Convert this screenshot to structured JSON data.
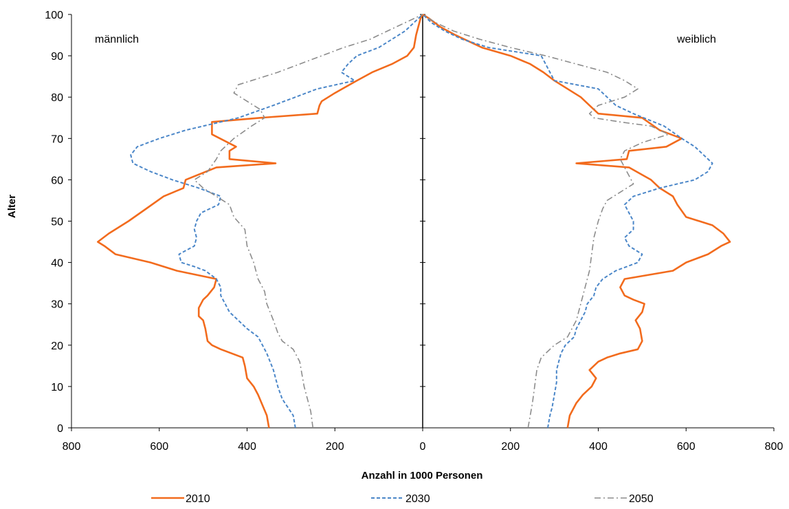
{
  "chart_data": {
    "type": "line",
    "title": "",
    "xlabel": "Anzahl in 1000 Personen",
    "ylabel": "Alter",
    "xlim_male": [
      800,
      0
    ],
    "xlim_female": [
      0,
      800
    ],
    "ylim": [
      0,
      100
    ],
    "x_ticks_male": [
      "800",
      "600",
      "400",
      "200",
      "0"
    ],
    "x_ticks_female": [
      "200",
      "400",
      "600",
      "800"
    ],
    "y_ticks": [
      "0",
      "10",
      "20",
      "30",
      "40",
      "50",
      "60",
      "70",
      "80",
      "90",
      "100"
    ],
    "annotations": {
      "male": "männlich",
      "female": "weiblich"
    },
    "legend_position": "bottom",
    "grid": false,
    "series": [
      {
        "name": "2010",
        "color": "#f26b1d",
        "style": "solid",
        "male": [
          [
            350,
            0
          ],
          [
            355,
            3
          ],
          [
            375,
            8
          ],
          [
            385,
            10
          ],
          [
            400,
            12
          ],
          [
            405,
            15
          ],
          [
            410,
            17
          ],
          [
            460,
            19
          ],
          [
            480,
            20
          ],
          [
            490,
            21
          ],
          [
            495,
            24
          ],
          [
            500,
            26
          ],
          [
            510,
            27
          ],
          [
            510,
            29
          ],
          [
            500,
            31
          ],
          [
            490,
            32
          ],
          [
            475,
            34
          ],
          [
            470,
            36
          ],
          [
            560,
            38
          ],
          [
            620,
            40
          ],
          [
            700,
            42
          ],
          [
            725,
            44
          ],
          [
            740,
            45
          ],
          [
            715,
            47
          ],
          [
            670,
            50
          ],
          [
            630,
            53
          ],
          [
            590,
            56
          ],
          [
            545,
            58
          ],
          [
            540,
            60
          ],
          [
            470,
            63
          ],
          [
            335,
            64
          ],
          [
            440,
            65
          ],
          [
            440,
            67
          ],
          [
            425,
            68
          ],
          [
            480,
            71
          ],
          [
            480,
            74
          ],
          [
            370,
            75
          ],
          [
            240,
            76
          ],
          [
            235,
            78
          ],
          [
            230,
            79
          ],
          [
            200,
            81
          ],
          [
            150,
            84
          ],
          [
            115,
            86
          ],
          [
            70,
            88
          ],
          [
            35,
            90
          ],
          [
            20,
            92
          ],
          [
            15,
            95
          ],
          [
            10,
            97
          ],
          [
            5,
            99
          ],
          [
            0,
            100
          ]
        ],
        "female": [
          [
            330,
            0
          ],
          [
            335,
            3
          ],
          [
            350,
            6
          ],
          [
            365,
            8
          ],
          [
            385,
            10
          ],
          [
            395,
            12
          ],
          [
            380,
            14
          ],
          [
            400,
            16
          ],
          [
            420,
            17
          ],
          [
            450,
            18
          ],
          [
            490,
            19
          ],
          [
            500,
            21
          ],
          [
            495,
            24
          ],
          [
            485,
            26
          ],
          [
            500,
            28
          ],
          [
            505,
            30
          ],
          [
            480,
            31
          ],
          [
            460,
            32
          ],
          [
            450,
            34
          ],
          [
            460,
            36
          ],
          [
            570,
            38
          ],
          [
            600,
            40
          ],
          [
            650,
            42
          ],
          [
            680,
            44
          ],
          [
            700,
            45
          ],
          [
            685,
            47
          ],
          [
            660,
            49
          ],
          [
            600,
            51
          ],
          [
            580,
            54
          ],
          [
            570,
            56
          ],
          [
            540,
            58
          ],
          [
            520,
            60
          ],
          [
            470,
            63
          ],
          [
            350,
            64
          ],
          [
            465,
            65
          ],
          [
            470,
            67
          ],
          [
            555,
            68
          ],
          [
            590,
            70
          ],
          [
            540,
            72
          ],
          [
            500,
            75
          ],
          [
            400,
            76
          ],
          [
            380,
            78
          ],
          [
            360,
            80
          ],
          [
            330,
            82
          ],
          [
            300,
            84
          ],
          [
            275,
            86
          ],
          [
            245,
            88
          ],
          [
            200,
            90
          ],
          [
            135,
            92
          ],
          [
            75,
            95
          ],
          [
            40,
            97
          ],
          [
            15,
            99
          ],
          [
            0,
            100
          ]
        ]
      },
      {
        "name": "2030",
        "color": "#4a86c8",
        "style": "dashed",
        "male": [
          [
            290,
            0
          ],
          [
            295,
            3
          ],
          [
            320,
            7
          ],
          [
            330,
            10
          ],
          [
            340,
            14
          ],
          [
            355,
            18
          ],
          [
            365,
            20
          ],
          [
            375,
            22
          ],
          [
            400,
            24
          ],
          [
            420,
            26
          ],
          [
            440,
            28
          ],
          [
            450,
            30
          ],
          [
            460,
            32
          ],
          [
            460,
            34
          ],
          [
            470,
            36
          ],
          [
            495,
            38
          ],
          [
            520,
            39
          ],
          [
            550,
            40
          ],
          [
            555,
            42
          ],
          [
            520,
            44
          ],
          [
            515,
            46
          ],
          [
            520,
            48
          ],
          [
            515,
            50
          ],
          [
            505,
            52
          ],
          [
            465,
            54
          ],
          [
            460,
            56
          ],
          [
            510,
            58
          ],
          [
            570,
            60
          ],
          [
            620,
            62
          ],
          [
            660,
            64
          ],
          [
            665,
            66
          ],
          [
            650,
            68
          ],
          [
            600,
            70
          ],
          [
            540,
            72
          ],
          [
            420,
            75
          ],
          [
            340,
            78
          ],
          [
            290,
            80
          ],
          [
            240,
            82
          ],
          [
            155,
            84
          ],
          [
            185,
            86
          ],
          [
            170,
            88
          ],
          [
            150,
            90
          ],
          [
            100,
            92
          ],
          [
            70,
            94
          ],
          [
            40,
            96
          ],
          [
            20,
            98
          ],
          [
            0,
            100
          ]
        ],
        "female": [
          [
            285,
            0
          ],
          [
            290,
            3
          ],
          [
            295,
            5
          ],
          [
            300,
            8
          ],
          [
            305,
            11
          ],
          [
            305,
            14
          ],
          [
            310,
            16
          ],
          [
            315,
            18
          ],
          [
            325,
            20
          ],
          [
            345,
            22
          ],
          [
            350,
            24
          ],
          [
            360,
            26
          ],
          [
            370,
            28
          ],
          [
            375,
            30
          ],
          [
            390,
            32
          ],
          [
            395,
            34
          ],
          [
            410,
            36
          ],
          [
            440,
            38
          ],
          [
            490,
            40
          ],
          [
            500,
            42
          ],
          [
            470,
            44
          ],
          [
            460,
            46
          ],
          [
            480,
            48
          ],
          [
            480,
            50
          ],
          [
            470,
            52
          ],
          [
            460,
            54
          ],
          [
            480,
            56
          ],
          [
            540,
            58
          ],
          [
            620,
            60
          ],
          [
            650,
            62
          ],
          [
            660,
            64
          ],
          [
            640,
            66
          ],
          [
            620,
            68
          ],
          [
            590,
            70
          ],
          [
            550,
            73
          ],
          [
            480,
            76
          ],
          [
            440,
            78
          ],
          [
            420,
            80
          ],
          [
            400,
            82
          ],
          [
            300,
            84
          ],
          [
            290,
            86
          ],
          [
            280,
            88
          ],
          [
            270,
            90
          ],
          [
            150,
            92
          ],
          [
            90,
            94
          ],
          [
            50,
            96
          ],
          [
            20,
            98
          ],
          [
            0,
            100
          ]
        ]
      },
      {
        "name": "2050",
        "color": "#8c8c8c",
        "style": "dashdot",
        "male": [
          [
            250,
            0
          ],
          [
            255,
            4
          ],
          [
            265,
            8
          ],
          [
            270,
            10
          ],
          [
            275,
            13
          ],
          [
            280,
            16
          ],
          [
            295,
            19
          ],
          [
            320,
            21
          ],
          [
            330,
            23
          ],
          [
            340,
            26
          ],
          [
            355,
            30
          ],
          [
            360,
            33
          ],
          [
            375,
            36
          ],
          [
            385,
            40
          ],
          [
            400,
            44
          ],
          [
            405,
            48
          ],
          [
            430,
            51
          ],
          [
            440,
            54
          ],
          [
            470,
            56
          ],
          [
            500,
            58
          ],
          [
            520,
            60
          ],
          [
            490,
            62
          ],
          [
            470,
            65
          ],
          [
            460,
            67
          ],
          [
            430,
            70
          ],
          [
            390,
            73
          ],
          [
            360,
            75
          ],
          [
            370,
            77
          ],
          [
            400,
            79
          ],
          [
            430,
            81
          ],
          [
            420,
            83
          ],
          [
            390,
            84
          ],
          [
            330,
            86
          ],
          [
            280,
            88
          ],
          [
            230,
            90
          ],
          [
            180,
            92
          ],
          [
            120,
            94
          ],
          [
            80,
            96
          ],
          [
            40,
            98
          ],
          [
            0,
            100
          ]
        ],
        "female": [
          [
            240,
            0
          ],
          [
            245,
            3
          ],
          [
            250,
            6
          ],
          [
            255,
            10
          ],
          [
            260,
            14
          ],
          [
            270,
            17
          ],
          [
            300,
            20
          ],
          [
            330,
            22
          ],
          [
            350,
            26
          ],
          [
            360,
            30
          ],
          [
            370,
            34
          ],
          [
            380,
            38
          ],
          [
            385,
            42
          ],
          [
            390,
            46
          ],
          [
            400,
            50
          ],
          [
            410,
            53
          ],
          [
            420,
            55
          ],
          [
            450,
            57
          ],
          [
            480,
            59
          ],
          [
            470,
            61
          ],
          [
            460,
            63
          ],
          [
            450,
            65
          ],
          [
            460,
            67
          ],
          [
            500,
            69
          ],
          [
            560,
            71
          ],
          [
            520,
            73
          ],
          [
            450,
            74
          ],
          [
            390,
            75
          ],
          [
            380,
            76
          ],
          [
            400,
            78
          ],
          [
            460,
            80
          ],
          [
            490,
            82
          ],
          [
            460,
            84
          ],
          [
            420,
            86
          ],
          [
            350,
            88
          ],
          [
            280,
            90
          ],
          [
            200,
            92
          ],
          [
            130,
            94
          ],
          [
            70,
            96
          ],
          [
            30,
            98
          ],
          [
            0,
            100
          ]
        ]
      }
    ]
  }
}
